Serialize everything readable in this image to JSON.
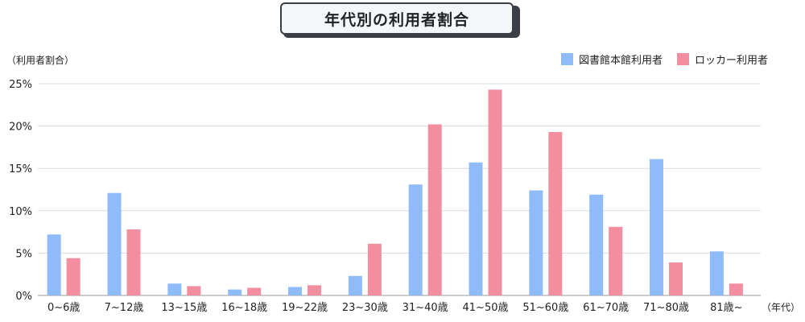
{
  "chart_data": {
    "type": "bar",
    "title": "年代別の利用者割合",
    "ylabel": "（利用者割合）",
    "xlabel": "（年代）",
    "categories": [
      "0~6歳",
      "7~12歳",
      "13~15歳",
      "16~18歳",
      "19~22歳",
      "23~30歳",
      "31~40歳",
      "41~50歳",
      "51~60歳",
      "61~70歳",
      "71~80歳",
      "81歳~"
    ],
    "series": [
      {
        "name": "図書館本館利用者",
        "color": "#8fbcf8",
        "values": [
          7.2,
          12.1,
          1.4,
          0.7,
          1.0,
          2.3,
          13.1,
          15.7,
          12.4,
          11.9,
          16.1,
          5.2
        ]
      },
      {
        "name": "ロッカー利用者",
        "color": "#f28e9f",
        "values": [
          4.4,
          7.8,
          1.1,
          0.9,
          1.2,
          6.1,
          20.2,
          24.3,
          19.3,
          8.1,
          3.9,
          1.4
        ]
      }
    ],
    "ylim": [
      0,
      25
    ],
    "yticks": [
      "0%",
      "5%",
      "10%",
      "15%",
      "20%",
      "25%"
    ],
    "grid": true,
    "legend_position": "top-right"
  }
}
